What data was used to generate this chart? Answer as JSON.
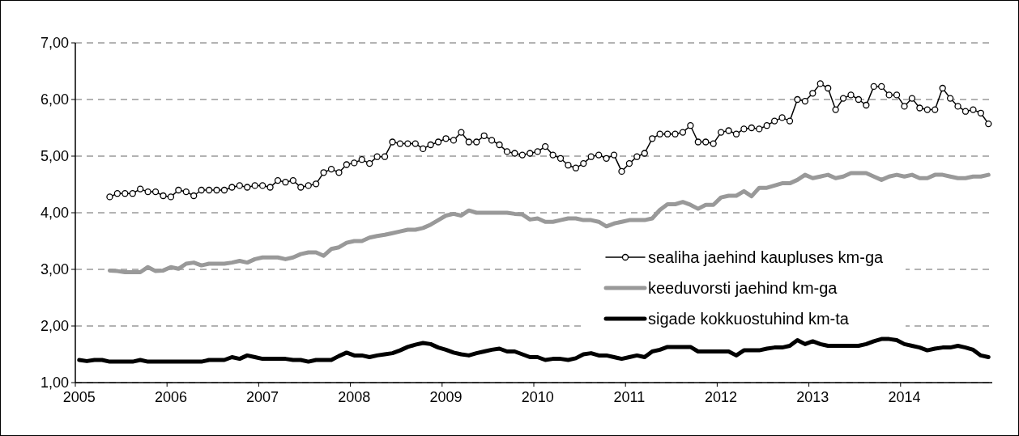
{
  "chart_data": {
    "type": "line",
    "categories": [
      "2005",
      null,
      null,
      null,
      null,
      null,
      null,
      null,
      null,
      null,
      null,
      null,
      "2006",
      null,
      null,
      null,
      null,
      null,
      null,
      null,
      null,
      null,
      null,
      null,
      "2007",
      null,
      null,
      null,
      null,
      null,
      null,
      null,
      null,
      null,
      null,
      null,
      "2008",
      null,
      null,
      null,
      null,
      null,
      null,
      null,
      null,
      null,
      null,
      null,
      "2009",
      null,
      null,
      null,
      null,
      null,
      null,
      null,
      null,
      null,
      null,
      null,
      "2010",
      null,
      null,
      null,
      null,
      null,
      null,
      null,
      null,
      null,
      null,
      null,
      "2011",
      null,
      null,
      null,
      null,
      null,
      null,
      null,
      null,
      null,
      null,
      null,
      "2012",
      null,
      null,
      null,
      null,
      null,
      null,
      null,
      null,
      null,
      null,
      null,
      "2013",
      null,
      null,
      null,
      null,
      null,
      null,
      null,
      null,
      null,
      null,
      null,
      "2014",
      null,
      null,
      null,
      null,
      null,
      null,
      null,
      null,
      null,
      null,
      null
    ],
    "series": [
      {
        "name": "sealiha jaehind kaupluses km-ga",
        "color": "#000000",
        "marker": "circle",
        "values": [
          null,
          null,
          null,
          null,
          4.28,
          4.34,
          4.34,
          4.34,
          4.42,
          4.37,
          4.37,
          4.3,
          4.28,
          4.4,
          4.37,
          4.3,
          4.4,
          4.4,
          4.4,
          4.4,
          4.45,
          4.48,
          4.45,
          4.48,
          4.48,
          4.45,
          4.57,
          4.54,
          4.57,
          4.45,
          4.48,
          4.51,
          4.71,
          4.77,
          4.71,
          4.85,
          4.88,
          4.94,
          4.87,
          4.99,
          4.99,
          5.25,
          5.22,
          5.22,
          5.22,
          5.13,
          5.2,
          5.25,
          5.31,
          5.28,
          5.42,
          5.25,
          5.25,
          5.36,
          5.28,
          5.2,
          5.08,
          5.05,
          5.02,
          5.05,
          5.08,
          5.17,
          5.02,
          4.96,
          4.84,
          4.79,
          4.87,
          4.99,
          5.02,
          4.96,
          5.02,
          4.73,
          4.87,
          4.99,
          5.05,
          5.31,
          5.39,
          5.39,
          5.39,
          5.42,
          5.54,
          5.25,
          5.25,
          5.22,
          5.42,
          5.45,
          5.39,
          5.48,
          5.5,
          5.48,
          5.54,
          5.62,
          5.68,
          5.62,
          6.0,
          5.97,
          6.11,
          6.28,
          6.2,
          5.82,
          6.02,
          6.08,
          6.0,
          5.9,
          6.23,
          6.23,
          6.08,
          6.08,
          5.88,
          6.02,
          5.85,
          5.82,
          5.82,
          6.2,
          6.02,
          5.88,
          5.79,
          5.82,
          5.76,
          5.57
        ]
      },
      {
        "name": "keeduvorsti jaehind km-ga",
        "color": "#999999",
        "values": [
          null,
          null,
          null,
          null,
          2.98,
          2.97,
          2.95,
          2.95,
          2.95,
          3.04,
          2.97,
          2.98,
          3.04,
          3.01,
          3.1,
          3.12,
          3.07,
          3.1,
          3.1,
          3.1,
          3.12,
          3.15,
          3.12,
          3.18,
          3.21,
          3.21,
          3.21,
          3.18,
          3.21,
          3.27,
          3.3,
          3.3,
          3.24,
          3.36,
          3.39,
          3.47,
          3.5,
          3.5,
          3.56,
          3.59,
          3.61,
          3.64,
          3.67,
          3.7,
          3.7,
          3.73,
          3.79,
          3.87,
          3.95,
          3.98,
          3.95,
          4.04,
          4.0,
          4.0,
          4.0,
          4.0,
          4.0,
          3.98,
          3.97,
          3.88,
          3.9,
          3.84,
          3.84,
          3.87,
          3.9,
          3.9,
          3.87,
          3.87,
          3.84,
          3.76,
          3.81,
          3.84,
          3.87,
          3.87,
          3.87,
          3.9,
          4.05,
          4.15,
          4.15,
          4.19,
          4.14,
          4.07,
          4.14,
          4.14,
          4.27,
          4.3,
          4.3,
          4.38,
          4.29,
          4.44,
          4.44,
          4.48,
          4.52,
          4.52,
          4.58,
          4.67,
          4.61,
          4.64,
          4.67,
          4.61,
          4.64,
          4.7,
          4.7,
          4.7,
          4.64,
          4.58,
          4.64,
          4.67,
          4.64,
          4.67,
          4.61,
          4.61,
          4.67,
          4.67,
          4.64,
          4.61,
          4.61,
          4.64,
          4.64,
          4.67
        ]
      },
      {
        "name": "sigade kokkuostuhind km-ta",
        "color": "#000000",
        "values": [
          1.4,
          1.38,
          1.4,
          1.4,
          1.37,
          1.37,
          1.37,
          1.37,
          1.4,
          1.37,
          1.37,
          1.37,
          1.37,
          1.37,
          1.37,
          1.37,
          1.37,
          1.4,
          1.4,
          1.4,
          1.45,
          1.42,
          1.48,
          1.45,
          1.42,
          1.42,
          1.42,
          1.42,
          1.4,
          1.4,
          1.37,
          1.4,
          1.4,
          1.4,
          1.47,
          1.53,
          1.48,
          1.48,
          1.45,
          1.48,
          1.5,
          1.52,
          1.57,
          1.63,
          1.67,
          1.7,
          1.68,
          1.62,
          1.58,
          1.53,
          1.5,
          1.48,
          1.52,
          1.55,
          1.58,
          1.6,
          1.55,
          1.55,
          1.5,
          1.45,
          1.45,
          1.4,
          1.42,
          1.42,
          1.4,
          1.43,
          1.5,
          1.52,
          1.48,
          1.48,
          1.45,
          1.42,
          1.45,
          1.48,
          1.45,
          1.55,
          1.58,
          1.63,
          1.63,
          1.63,
          1.63,
          1.55,
          1.55,
          1.55,
          1.55,
          1.55,
          1.48,
          1.57,
          1.57,
          1.57,
          1.6,
          1.62,
          1.62,
          1.65,
          1.75,
          1.68,
          1.73,
          1.68,
          1.65,
          1.65,
          1.65,
          1.65,
          1.65,
          1.68,
          1.73,
          1.77,
          1.77,
          1.75,
          1.68,
          1.65,
          1.62,
          1.57,
          1.6,
          1.62,
          1.62,
          1.65,
          1.62,
          1.58,
          1.48,
          1.45
        ]
      }
    ],
    "ylim": [
      1,
      7
    ],
    "yticks": [
      {
        "value": 1,
        "label": "1,00"
      },
      {
        "value": 2,
        "label": "2,00"
      },
      {
        "value": 3,
        "label": "3,00"
      },
      {
        "value": 4,
        "label": "4,00"
      },
      {
        "value": 5,
        "label": "5,00"
      },
      {
        "value": 6,
        "label": "6,00"
      },
      {
        "value": 7,
        "label": "7,00"
      }
    ],
    "grid": "y",
    "legend": "right"
  }
}
